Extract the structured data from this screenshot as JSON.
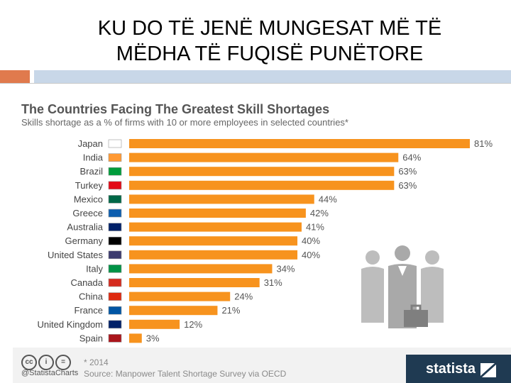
{
  "slide": {
    "title_line1": "KU DO TË JENË MUNGESAT MË TË",
    "title_line2": "MËDHA TË FUQISË PUNËTORE"
  },
  "colors": {
    "bar": "#f7931e",
    "accent_orange": "#e07a4d",
    "accent_blue": "#c8d7e8",
    "statista_navy": "#1f3a52"
  },
  "chart_data": {
    "type": "bar",
    "orientation": "horizontal",
    "title": "The Countries Facing The Greatest Skill Shortages",
    "subtitle": "Skills shortage as a % of firms with 10 or more employees in selected countries*",
    "categories": [
      "Japan",
      "India",
      "Brazil",
      "Turkey",
      "Mexico",
      "Greece",
      "Australia",
      "Germany",
      "United States",
      "Italy",
      "Canada",
      "China",
      "France",
      "United Kingdom",
      "Spain"
    ],
    "values": [
      81,
      64,
      63,
      63,
      44,
      42,
      41,
      40,
      40,
      34,
      31,
      24,
      21,
      12,
      3
    ],
    "value_labels": [
      "81%",
      "64%",
      "63%",
      "63%",
      "44%",
      "42%",
      "41%",
      "40%",
      "40%",
      "34%",
      "31%",
      "24%",
      "21%",
      "12%",
      "3%"
    ],
    "xlim": [
      0,
      81
    ],
    "grid": false,
    "legend": "none"
  },
  "footer": {
    "footnote": "* 2014",
    "source": "Source: Manpower Talent Shortage Survey via OECD",
    "handle": "@StatistaCharts",
    "brand": "statista",
    "cc_icons": [
      "cc",
      "i",
      "="
    ]
  }
}
